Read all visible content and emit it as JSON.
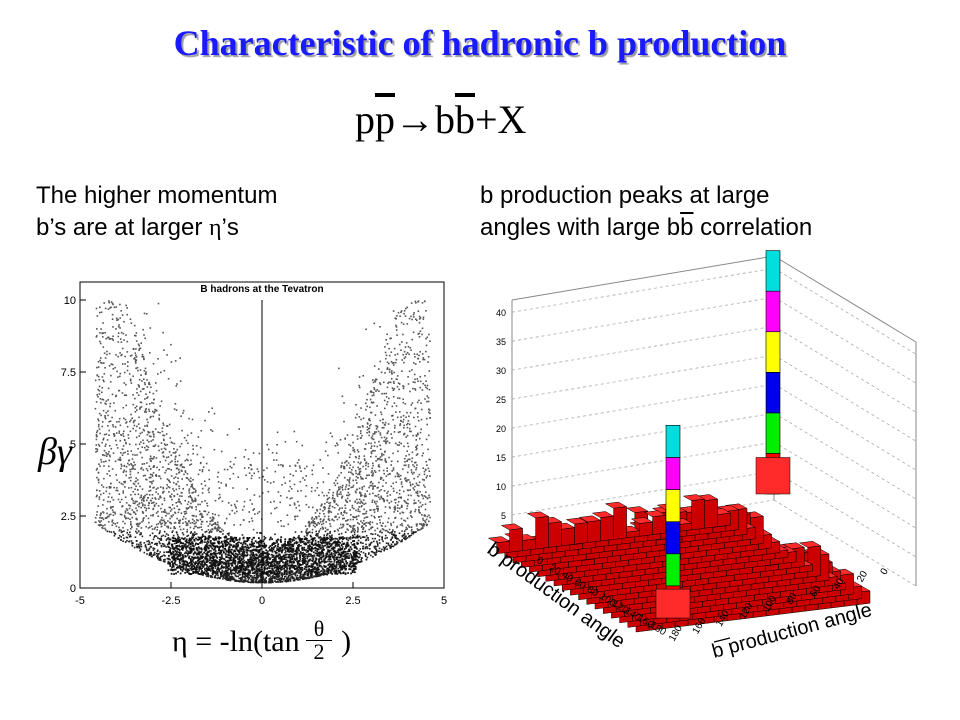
{
  "slide": {
    "title": "Characteristic of hadronic b production",
    "reaction": {
      "p": "p",
      "pbar": "p",
      "arrow": "→",
      "b": "b",
      "bbar": "b",
      "rest": "+X"
    },
    "left_note": [
      "The higher momentum",
      "b’s are at larger ",
      "η",
      "’s"
    ],
    "right_note": [
      "b production peaks at large",
      "angles with large b",
      "b",
      " correlation"
    ],
    "betagamma_label": "βγ",
    "eta_formula": {
      "lhs": "η",
      "eq": " = -ln(tan ",
      "num": "θ",
      "den": "2",
      "close": ")"
    }
  },
  "chart_data": [
    {
      "type": "scatter",
      "title": "B hadrons at the Tevatron",
      "xlabel": "η = -ln(tan θ/2)",
      "ylabel": "βγ",
      "xlim": [
        -5,
        5
      ],
      "ylim": [
        0,
        10
      ],
      "xticks": [
        "-5",
        "-2.5",
        "0",
        "2.5",
        "5"
      ],
      "yticks": [
        "0",
        "2.5",
        "5",
        "7.5",
        "10"
      ],
      "density_description_points": [
        {
          "x": -0.5,
          "y": 1.0
        },
        {
          "x": 0.5,
          "y": 1.0
        },
        {
          "x": -1.5,
          "y": 1.5
        },
        {
          "x": 1.5,
          "y": 1.5
        },
        {
          "x": -2.5,
          "y": 3.0
        },
        {
          "x": 2.5,
          "y": 3.0
        },
        {
          "x": -3.0,
          "y": 5.0
        },
        {
          "x": 3.0,
          "y": 5.0
        },
        {
          "x": -3.5,
          "y": 7.5
        },
        {
          "x": 3.5,
          "y": 7.5
        }
      ],
      "vertical_line_x": 0
    },
    {
      "type": "bar3d",
      "title": "",
      "xlabel": "b production angle",
      "ylabel": "b production angle",
      "ylabel_overline": true,
      "zlabel": "",
      "xticks": [
        "0",
        "20",
        "40",
        "60",
        "80",
        "100",
        "120",
        "140",
        "160",
        "180"
      ],
      "yticks": [
        "180",
        "160",
        "140",
        "120",
        "100",
        "80",
        "60",
        "40",
        "20",
        "0"
      ],
      "zticks": [
        "0",
        "5",
        "10",
        "15",
        "20",
        "25",
        "30",
        "35",
        "40"
      ],
      "zlim": [
        0,
        40
      ],
      "peaks": [
        {
          "b_angle": 180,
          "bbar_angle": 180,
          "height": 35
        },
        {
          "b_angle": 0,
          "bbar_angle": 0,
          "height": 40
        }
      ],
      "background_level": [
        1,
        6
      ],
      "ridge_height_max": 12,
      "colors": [
        "#ff0000",
        "#00ee00",
        "#0000ee",
        "#ffff00",
        "#ff00ff",
        "#00dddd"
      ]
    }
  ]
}
